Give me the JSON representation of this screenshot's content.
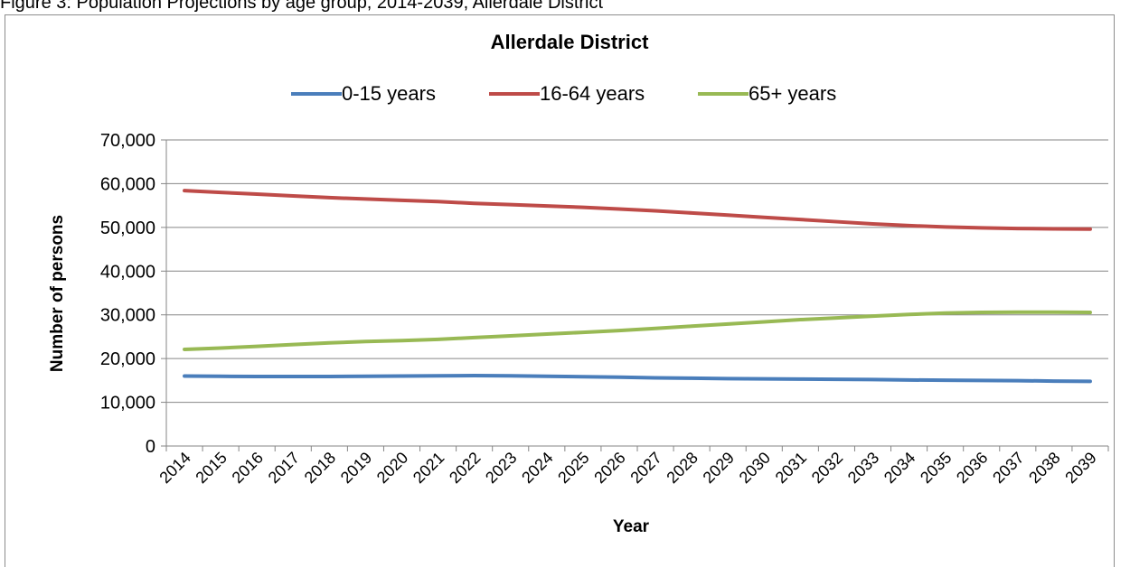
{
  "caption": "Figure 3: Population Projections by age group, 2014-2039, Allerdale District",
  "colors": {
    "series_0_15": "#4a7ebb",
    "series_16_64": "#be4b48",
    "series_65plus": "#98b954",
    "grid": "#868686"
  },
  "chart_data": {
    "type": "line",
    "title": "Allerdale District",
    "xlabel": "Year",
    "ylabel": "Number of persons",
    "ylim": [
      0,
      70000
    ],
    "yticks": [
      "0",
      "10,000",
      "20,000",
      "30,000",
      "40,000",
      "50,000",
      "60,000",
      "70,000"
    ],
    "grid": true,
    "legend_position": "top",
    "categories": [
      "2014",
      "2015",
      "2016",
      "2017",
      "2018",
      "2019",
      "2020",
      "2021",
      "2022",
      "2023",
      "2024",
      "2025",
      "2026",
      "2027",
      "2028",
      "2029",
      "2030",
      "2031",
      "2032",
      "2033",
      "2034",
      "2035",
      "2036",
      "2037",
      "2038",
      "2039"
    ],
    "series": [
      {
        "name": "0-15 years",
        "color": "#4a7ebb",
        "values": [
          16000,
          15950,
          15900,
          15900,
          15900,
          15950,
          16000,
          16050,
          16100,
          16050,
          15950,
          15850,
          15750,
          15600,
          15500,
          15400,
          15350,
          15300,
          15250,
          15200,
          15100,
          15050,
          15000,
          14950,
          14850,
          14800
        ]
      },
      {
        "name": "16-64 years",
        "color": "#be4b48",
        "values": [
          58400,
          58000,
          57600,
          57200,
          56800,
          56500,
          56200,
          55900,
          55500,
          55200,
          54900,
          54600,
          54200,
          53800,
          53300,
          52800,
          52300,
          51800,
          51300,
          50800,
          50400,
          50100,
          49900,
          49750,
          49650,
          49600
        ]
      },
      {
        "name": "65+ years",
        "color": "#98b954",
        "values": [
          22100,
          22400,
          22800,
          23200,
          23600,
          23900,
          24100,
          24400,
          24800,
          25200,
          25600,
          26000,
          26400,
          26900,
          27400,
          27900,
          28400,
          28900,
          29300,
          29700,
          30100,
          30400,
          30550,
          30600,
          30600,
          30550
        ]
      }
    ]
  }
}
